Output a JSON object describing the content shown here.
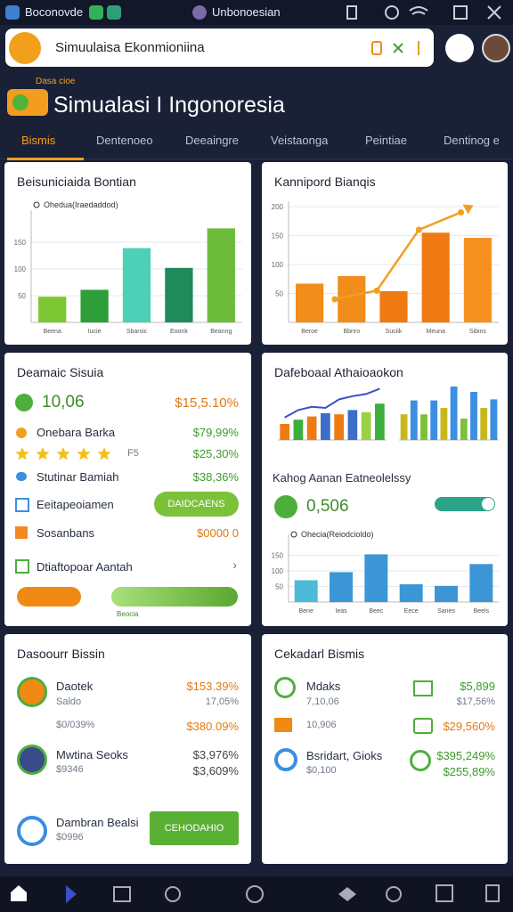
{
  "status_bar": {
    "app": "Boconovde",
    "tab": "Unbonoesian"
  },
  "search": {
    "text": "Simuulaisa Ekonmioniina"
  },
  "header": {
    "kicker": "Dasa cioe",
    "title": "Simualasi I Ingonoresia"
  },
  "tabs": [
    "Bismis",
    "Dentenoeo",
    "Deeaingre",
    "Veistaonga",
    "Peintiae",
    "Dentinog e"
  ],
  "cards": [
    {
      "title": "Beisuniciaida Bontian",
      "chart": {
        "legend": "Ohedua(Iraedaddod)",
        "categories": [
          "Beena",
          "Iucie",
          "Sbarsic",
          "Eoonk",
          "Beanng"
        ],
        "values": [
          48,
          61,
          139,
          102,
          176
        ],
        "colors": [
          "#7dc832",
          "#2e9e3a",
          "#4dd0b5",
          "#1f8a5c",
          "#6dbb3a"
        ],
        "ylim": [
          0,
          200
        ],
        "yticks": [
          50,
          100,
          150
        ]
      }
    },
    {
      "title": "Kannipord Bianqis",
      "chart": {
        "categories": [
          "Beroe",
          "Bbnro",
          "Suciik",
          "Meuna",
          "Sibins"
        ],
        "values": [
          67,
          80,
          54,
          155,
          146
        ],
        "colors": [
          "#f28c1a",
          "#f28c1a",
          "#f07a12",
          "#f07a12",
          "#f5901e"
        ],
        "line": [
          null,
          40,
          55,
          160,
          190
        ],
        "line_color": "#f0a020",
        "ylim": [
          0,
          200
        ],
        "yticks": [
          50,
          100,
          150,
          200
        ]
      }
    },
    {
      "title": "Deamaic Sisuia",
      "metric": "10,06",
      "metric_value": "$15,5.10%",
      "rows": [
        {
          "label": "Onebara Barka",
          "value": "$79,99%"
        },
        {
          "rating": 5,
          "rating_label": "F5",
          "value": "$25,30%"
        },
        {
          "label": "Stutinar Bamiah",
          "value": "$38,36%"
        },
        {
          "label": "Eeitapeoiamen",
          "button": "DAIDCAENS"
        },
        {
          "label": "Sosanbans",
          "value": "$0000 0"
        },
        {
          "label": "Dtiaftopoar Aantah"
        }
      ],
      "progress_label": "Beocia"
    },
    {
      "title": "Dafeboaal Athaioaokon",
      "mini_left": {
        "values": [
          30,
          38,
          44,
          50,
          48,
          56,
          52,
          68
        ],
        "colors": [
          "#f07a12",
          "#3cae3c",
          "#f07a12",
          "#3c6ec8",
          "#f07a12",
          "#3c6ec8",
          "#9bd040",
          "#3cae3c"
        ],
        "line": [
          42,
          56,
          62,
          60,
          76,
          82,
          86,
          96
        ],
        "line_color": "#3c4ec8"
      },
      "mini_right": {
        "values": [
          48,
          74,
          48,
          74,
          60,
          100,
          40,
          90,
          60,
          76
        ],
        "colors": [
          "#c8b820",
          "#3c8ee0",
          "#7cc13a",
          "#3c8ee0",
          "#c8b820",
          "#3c8ee0",
          "#7cc13a",
          "#3c8ee0",
          "#c8b820",
          "#3c8ee0"
        ]
      },
      "metric_label": "Kahog Aanan Eatneolelssy",
      "metric_value": "0,506",
      "chart": {
        "legend": "Ohecia(Reiodcioldo)",
        "categories": [
          "Bene",
          "Ieas",
          "Beec",
          "Eece",
          "Sanes",
          "Beels"
        ],
        "values": [
          70,
          96,
          153,
          57,
          52,
          122
        ],
        "colors": [
          "#4bbbd8",
          "#3c96d6",
          "#3c96d6",
          "#3c96d6",
          "#3c96d6",
          "#3c96d6"
        ],
        "ylim": [
          0,
          200
        ],
        "yticks": [
          50,
          100,
          150
        ]
      }
    },
    {
      "title": "Dasoourr Bissin",
      "rows": [
        {
          "name": "Daotek",
          "sub": "Saldo",
          "value": "$153.39%",
          "value2": "17,05%"
        },
        {
          "name": "$0/039%",
          "value": "$380.09%"
        },
        {
          "name": "Mwtina Seoks",
          "sub": "$9346",
          "value": "$3,976%",
          "value2": "$3,609%"
        },
        {
          "name": "Dambran Bealsi",
          "sub": "$0996",
          "button": "CEHODAHIO"
        }
      ]
    },
    {
      "title": "Cekadarl Bismis",
      "rows": [
        {
          "name": "Mdaks",
          "sub": "7,10,06",
          "value": "$5,899",
          "value2": "$17,56%"
        },
        {
          "name": "10,906",
          "value": "$29,560%"
        },
        {
          "name": "Bsridart, Gioks",
          "sub": "$0,100",
          "value": "$395,249%",
          "value2": "$255,89%"
        }
      ]
    }
  ]
}
